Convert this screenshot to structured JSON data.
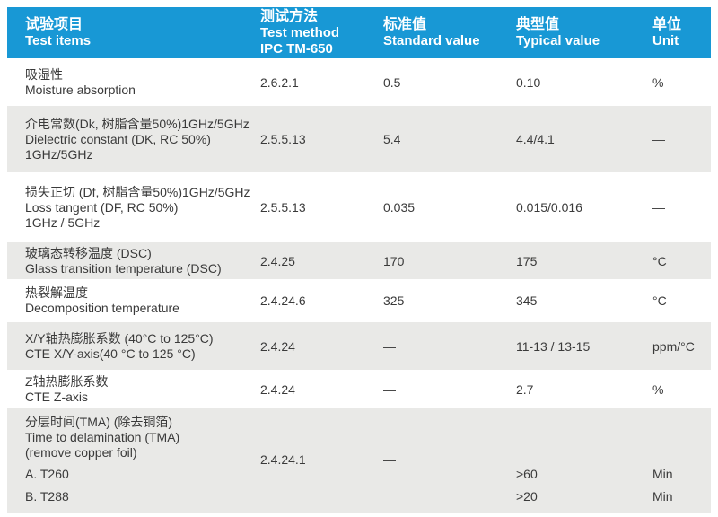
{
  "header": {
    "col1": [
      "试验项目",
      "Test items"
    ],
    "col2": [
      "测试方法",
      "Test method",
      "IPC TM-650"
    ],
    "col3": [
      "标准值",
      "Standard value"
    ],
    "col4": [
      "典型值",
      "Typical value"
    ],
    "col5": [
      "单位",
      "Unit"
    ]
  },
  "rows": [
    {
      "zh": "吸湿性",
      "en": "Moisture absorption",
      "method": "2.6.2.1",
      "standard": "0.5",
      "typical": "0.10",
      "unit": "%"
    },
    {
      "zh": "介电常数(Dk, 树脂含量50%)1GHz/5GHz",
      "en": "Dielectric constant (DK, RC 50%)",
      "en2": "1GHz/5GHz",
      "method": "2.5.5.13",
      "standard": "5.4",
      "typical": "4.4/4.1",
      "unit": "—"
    },
    {
      "zh": "损失正切 (Df, 树脂含量50%)1GHz/5GHz",
      "en": "Loss tangent (DF, RC 50%)",
      "en2": "1GHz / 5GHz",
      "method": "2.5.5.13",
      "standard": "0.035",
      "typical": "0.015/0.016",
      "unit": "—"
    },
    {
      "zh": "玻璃态转移温度 (DSC)",
      "en": "Glass transition temperature (DSC)",
      "method": "2.4.25",
      "standard": "170",
      "typical": "175",
      "unit": "°C"
    },
    {
      "zh": "热裂解温度",
      "en": "Decomposition temperature",
      "method": "2.4.24.6",
      "standard": "325",
      "typical": "345",
      "unit": "°C"
    },
    {
      "zh": "X/Y轴热膨胀系数 (40°C to 125°C)",
      "en": "CTE X/Y-axis(40 °C to 125 °C)",
      "method": "2.4.24",
      "standard": "—",
      "typical": "11-13 / 13-15",
      "unit": "ppm/°C"
    },
    {
      "zh": "Z轴热膨胀系数",
      "en": "CTE Z-axis",
      "method": "2.4.24",
      "standard": "—",
      "typical": "2.7",
      "unit": "%"
    },
    {
      "zh": "分层时间(TMA) (除去铜箔)",
      "en": "Time to delamination (TMA)",
      "en2": "(remove copper foil)",
      "sub_a": "A. T260",
      "sub_b": "B. T288",
      "method": "2.4.24.1",
      "standard": "—",
      "typical_a": ">60",
      "typical_b": ">20",
      "unit_a": "Min",
      "unit_b": "Min"
    }
  ],
  "colors": {
    "header_bg": "#1898d5",
    "header_text": "#ffffff",
    "stripe_bg": "#e9e9e7",
    "text": "#3a3a3a"
  }
}
